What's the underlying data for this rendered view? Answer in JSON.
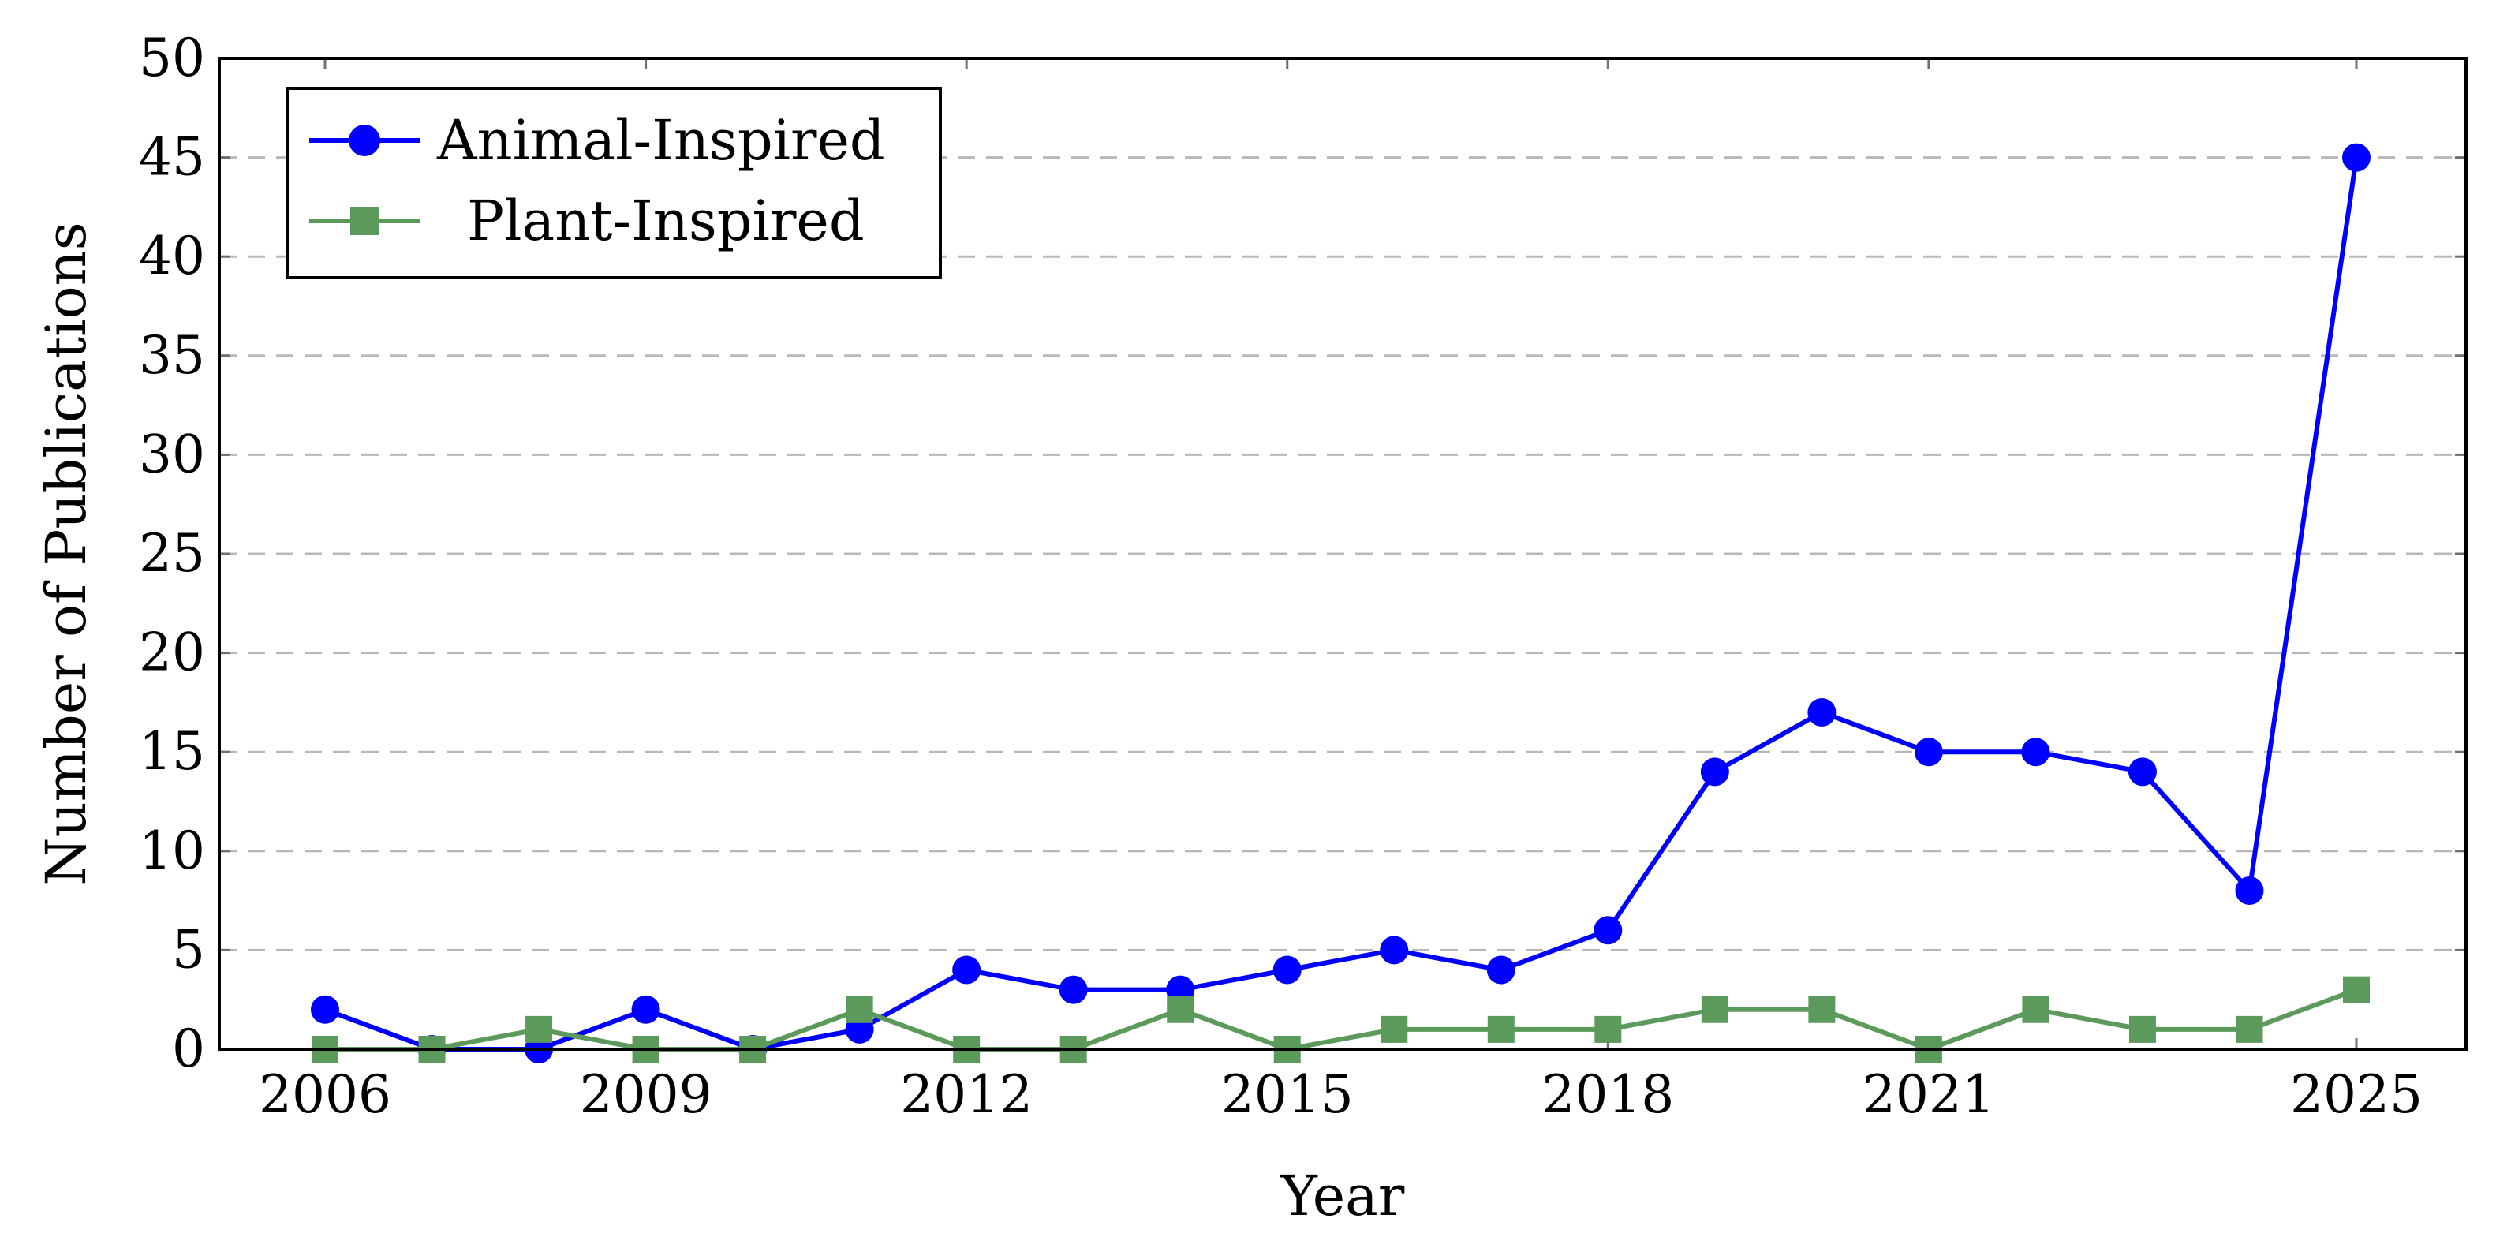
{
  "chart_data": {
    "type": "line",
    "title": "",
    "xlabel": "Year",
    "ylabel": "Number of Publications",
    "x": [
      2006,
      2007,
      2008,
      2009,
      2010,
      2011,
      2012,
      2013,
      2014,
      2015,
      2016,
      2017,
      2018,
      2019,
      2020,
      2021,
      2022,
      2023,
      2024,
      2025
    ],
    "xticks": [
      "2006",
      "2009",
      "2012",
      "2015",
      "2018",
      "2021",
      "2025"
    ],
    "yticks": [
      "0",
      "5",
      "10",
      "15",
      "20",
      "25",
      "30",
      "35",
      "40",
      "45",
      "50"
    ],
    "xlim": [
      2005,
      2026
    ],
    "ylim": [
      0,
      50
    ],
    "grid": "horizontal dashed",
    "legend_position": "top-left",
    "series": [
      {
        "name": "Animal-Inspired",
        "color": "#0000ff",
        "marker": "circle",
        "values": [
          2,
          0,
          0,
          2,
          0,
          1,
          4,
          3,
          3,
          4,
          5,
          4,
          6,
          14,
          17,
          15,
          15,
          14,
          8,
          45
        ]
      },
      {
        "name": "Plant-Inspired",
        "color": "#5c9a5c",
        "marker": "square",
        "values": [
          0,
          0,
          1,
          0,
          0,
          2,
          0,
          0,
          2,
          0,
          1,
          1,
          1,
          2,
          2,
          0,
          2,
          1,
          1,
          3
        ]
      }
    ]
  }
}
